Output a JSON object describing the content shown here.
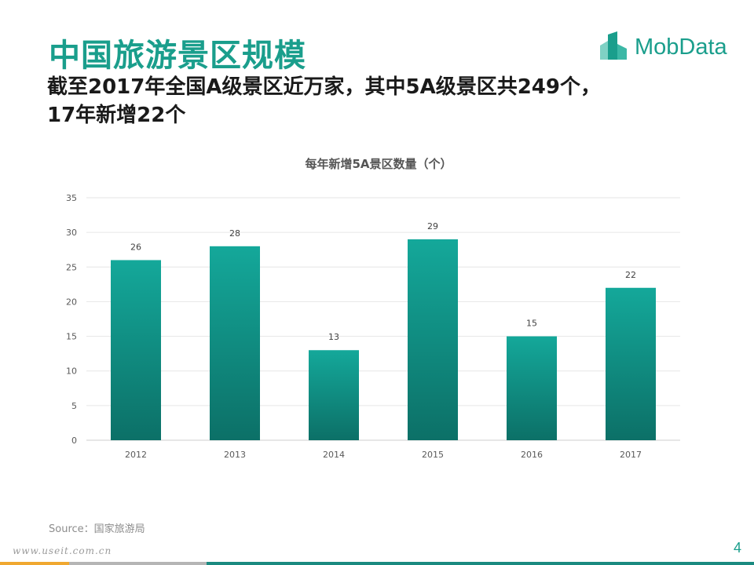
{
  "header": {
    "title": "中国旅游景区规模",
    "subtitle_line1": "截至2017年全国A级景区近万家，其中5A级景区共249个，",
    "subtitle_line2": "17年新增22个"
  },
  "logo": {
    "text": "MobData",
    "icon": "mobdata-building-icon"
  },
  "footer": {
    "source": "Source：国家旅游局",
    "watermark": "www.useit.com.cn",
    "page_number": "4"
  },
  "colors": {
    "accent": "#1a9e8c",
    "bar_top": "#14a89a",
    "bar_bottom": "#0c7067",
    "title": "#1a9e8c",
    "band_orange": "#f0a830",
    "band_gray": "#b5b5b5",
    "band_teal": "#1a8a80"
  },
  "chart_data": {
    "type": "bar",
    "title": "每年新增5A景区数量（个）",
    "categories": [
      "2012",
      "2013",
      "2014",
      "2015",
      "2016",
      "2017"
    ],
    "values": [
      26,
      28,
      13,
      29,
      15,
      22
    ],
    "xlabel": "",
    "ylabel": "",
    "ylim": [
      0,
      35
    ],
    "yticks": [
      0,
      5,
      10,
      15,
      20,
      25,
      30,
      35
    ],
    "grid": true,
    "data_labels": true,
    "legend": "none"
  }
}
